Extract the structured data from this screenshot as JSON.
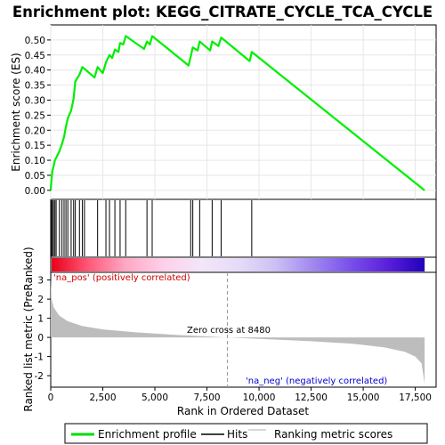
{
  "chart_data": {
    "type": "line",
    "title": "Enrichment plot: KEGG_CITRATE_CYCLE_TCA_CYCLE",
    "xlabel": "Rank in Ordered Dataset",
    "ylabel_top": "Enrichment score (ES)",
    "ylabel_bottom": "Ranked list metric (PreRanked)",
    "xlim": [
      0,
      18500
    ],
    "x_ticks": [
      0,
      2500,
      5000,
      7500,
      10000,
      12500,
      15000,
      17500
    ],
    "x_tick_labels": [
      "0",
      "2,500",
      "5,000",
      "7,500",
      "10,000",
      "12,500",
      "15,000",
      "17,500"
    ],
    "es_ylim": [
      -0.03,
      0.55
    ],
    "es_ticks": [
      0.0,
      0.05,
      0.1,
      0.15,
      0.2,
      0.25,
      0.3,
      0.35,
      0.4,
      0.45,
      0.5
    ],
    "es_tick_labels": [
      "0.00",
      "0.05",
      "0.10",
      "0.15",
      "0.20",
      "0.25",
      "0.30",
      "0.35",
      "0.40",
      "0.45",
      "0.50"
    ],
    "metric_ylim": [
      -2.6,
      3.4
    ],
    "metric_ticks": [
      3,
      2,
      1,
      0,
      -1,
      -2
    ],
    "metric_tick_labels": [
      "3",
      "2",
      "1",
      "0",
      "-1",
      "-2"
    ],
    "hits": [
      30,
      80,
      130,
      200,
      260,
      420,
      540,
      640,
      730,
      820,
      980,
      1100,
      1180,
      1380,
      1520,
      1620,
      2250,
      2650,
      2820,
      3080,
      3330,
      3600,
      4620,
      4870,
      6720,
      6820,
      7150,
      7750,
      8180,
      9650
    ],
    "es_points": [
      [
        0,
        0.0
      ],
      [
        30,
        0.03
      ],
      [
        80,
        0.065
      ],
      [
        130,
        0.078
      ],
      [
        200,
        0.1
      ],
      [
        260,
        0.108
      ],
      [
        420,
        0.13
      ],
      [
        540,
        0.154
      ],
      [
        640,
        0.178
      ],
      [
        730,
        0.212
      ],
      [
        820,
        0.24
      ],
      [
        980,
        0.265
      ],
      [
        1100,
        0.305
      ],
      [
        1180,
        0.362
      ],
      [
        1380,
        0.385
      ],
      [
        1520,
        0.41
      ],
      [
        2100,
        0.375
      ],
      [
        2250,
        0.41
      ],
      [
        2500,
        0.39
      ],
      [
        2650,
        0.425
      ],
      [
        2820,
        0.45
      ],
      [
        2950,
        0.44
      ],
      [
        3080,
        0.468
      ],
      [
        3250,
        0.46
      ],
      [
        3330,
        0.49
      ],
      [
        3480,
        0.485
      ],
      [
        3600,
        0.513
      ],
      [
        4480,
        0.47
      ],
      [
        4620,
        0.495
      ],
      [
        4760,
        0.485
      ],
      [
        4870,
        0.513
      ],
      [
        6620,
        0.415
      ],
      [
        6720,
        0.445
      ],
      [
        6820,
        0.475
      ],
      [
        7050,
        0.465
      ],
      [
        7150,
        0.495
      ],
      [
        7650,
        0.465
      ],
      [
        7750,
        0.495
      ],
      [
        8050,
        0.48
      ],
      [
        8180,
        0.508
      ],
      [
        9550,
        0.43
      ],
      [
        9650,
        0.46
      ],
      [
        17950,
        0.0
      ]
    ],
    "zero_cross": 8480,
    "metric_profile": [
      [
        0,
        3.1
      ],
      [
        40,
        2.0
      ],
      [
        150,
        1.55
      ],
      [
        400,
        1.15
      ],
      [
        800,
        0.85
      ],
      [
        1500,
        0.6
      ],
      [
        2500,
        0.42
      ],
      [
        4000,
        0.27
      ],
      [
        6000,
        0.13
      ],
      [
        8480,
        0.0
      ],
      [
        10500,
        -0.1
      ],
      [
        12500,
        -0.2
      ],
      [
        14500,
        -0.33
      ],
      [
        16000,
        -0.52
      ],
      [
        17000,
        -0.75
      ],
      [
        17500,
        -1.0
      ],
      [
        17800,
        -1.35
      ],
      [
        17950,
        -2.4
      ]
    ],
    "band_stops": [
      "#e8001a",
      "#ff5a7a",
      "#ffa8c4",
      "#ffd0ea",
      "#f2e6f8",
      "#e6dcf8",
      "#ccc0f4",
      "#a088f0",
      "#7a50ea",
      "#5a20dc",
      "#2200bb"
    ],
    "na_pos_label": "'na_pos' (positively correlated)",
    "na_neg_label": "'na_neg' (negatively correlated)",
    "zero_cross_label": "Zero cross at 8480",
    "legend": {
      "items": [
        {
          "label": "Enrichment profile",
          "color": "#00dd00"
        },
        {
          "label": "Hits",
          "color": "#000000"
        },
        {
          "label": "Ranking metric scores",
          "color": "#b0b0b0"
        }
      ]
    },
    "colors": {
      "es_line": "#00ee00",
      "metric_fill": "#bdbdbd",
      "na_pos_text": "#cc0000",
      "na_neg_text": "#0000cc"
    }
  }
}
